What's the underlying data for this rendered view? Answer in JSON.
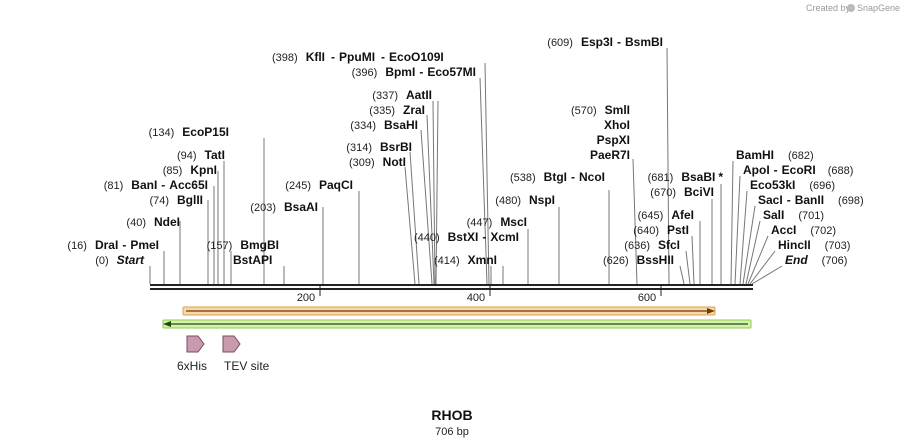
{
  "credit": {
    "prefix": "Created by",
    "brand": "SnapGene"
  },
  "title": "RHOB",
  "length_label": "706 bp",
  "ticks": [
    {
      "label": "200"
    },
    {
      "label": "400"
    },
    {
      "label": "600"
    }
  ],
  "features": [
    {
      "label": "6xHis"
    },
    {
      "label": "TEV site"
    }
  ],
  "sites": {
    "ecop15i": {
      "pos": "(134)",
      "name": "EcoP15I"
    },
    "tati": {
      "pos": "(94)",
      "name": "TatI"
    },
    "kpni": {
      "pos": "(85)",
      "name": "KpnI"
    },
    "bani": {
      "pos": "(81)",
      "name": "BanI",
      "name2": "Acc65I"
    },
    "bglii": {
      "pos": "(74)",
      "name": "BglII"
    },
    "ndei": {
      "pos": "(40)",
      "name": "NdeI"
    },
    "drai": {
      "pos": "(16)",
      "name": "DraI",
      "name2": "PmeI"
    },
    "start": {
      "pos": "(0)",
      "name": "Start"
    },
    "bmgbi": {
      "pos": "(157)",
      "name": "BmgBI"
    },
    "bstapi": {
      "name": "BstAPI"
    },
    "bsaai": {
      "pos": "(203)",
      "name": "BsaAI"
    },
    "paqci": {
      "pos": "(245)",
      "name": "PaqCI"
    },
    "kfli": {
      "pos": "(398)",
      "name": "KflI",
      "name2": "PpuMI",
      "name3": "EcoO109I"
    },
    "bpmi": {
      "pos": "(396)",
      "name": "BpmI",
      "name2": "Eco57MI"
    },
    "aatii": {
      "pos": "(337)",
      "name": "AatII"
    },
    "zrai": {
      "pos": "(335)",
      "name": "ZraI"
    },
    "bsahi": {
      "pos": "(334)",
      "name": "BsaHI"
    },
    "bsrbi": {
      "pos": "(314)",
      "name": "BsrBI"
    },
    "noti": {
      "pos": "(309)",
      "name": "NotI"
    },
    "bstxi": {
      "pos": "(440)",
      "name": "BstXI",
      "name2": "XcmI"
    },
    "xmni": {
      "pos": "(414)",
      "name": "XmnI"
    },
    "msci": {
      "pos": "(447)",
      "name": "MscI"
    },
    "nspi": {
      "pos": "(480)",
      "name": "NspI"
    },
    "btgi": {
      "pos": "(538)",
      "name": "BtgI",
      "name2": "NcoI"
    },
    "esp3i": {
      "pos": "(609)",
      "name": "Esp3I",
      "name2": "BsmBI"
    },
    "smli": {
      "pos": "(570)",
      "name": "SmlI"
    },
    "xhoi": {
      "name": "XhoI"
    },
    "pspxi": {
      "name": "PspXI"
    },
    "paer7i": {
      "name": "PaeR7I"
    },
    "bsabi": {
      "pos": "(681)",
      "name": "BsaBI",
      "mark": "*"
    },
    "bcivi": {
      "pos": "(670)",
      "name": "BciVI"
    },
    "afei": {
      "pos": "(645)",
      "name": "AfeI"
    },
    "psti": {
      "pos": "(640)",
      "name": "PstI"
    },
    "sfci": {
      "pos": "(636)",
      "name": "SfcI"
    },
    "bsshii": {
      "pos": "(626)",
      "name": "BssHII"
    },
    "bamhi": {
      "name": "BamHI",
      "pos": "(682)"
    },
    "apoi": {
      "name": "ApoI",
      "name2": "EcoRI",
      "pos": "(688)"
    },
    "eco53ki": {
      "name": "Eco53kI",
      "pos": "(696)"
    },
    "saci": {
      "name": "SacI",
      "name2": "BanII",
      "pos": "(698)"
    },
    "sali": {
      "name": "SalI",
      "pos": "(701)"
    },
    "acci": {
      "name": "AccI",
      "pos": "(702)"
    },
    "hincii": {
      "name": "HincII",
      "pos": "(703)"
    },
    "end": {
      "name": "End",
      "pos": "(706)"
    }
  }
}
